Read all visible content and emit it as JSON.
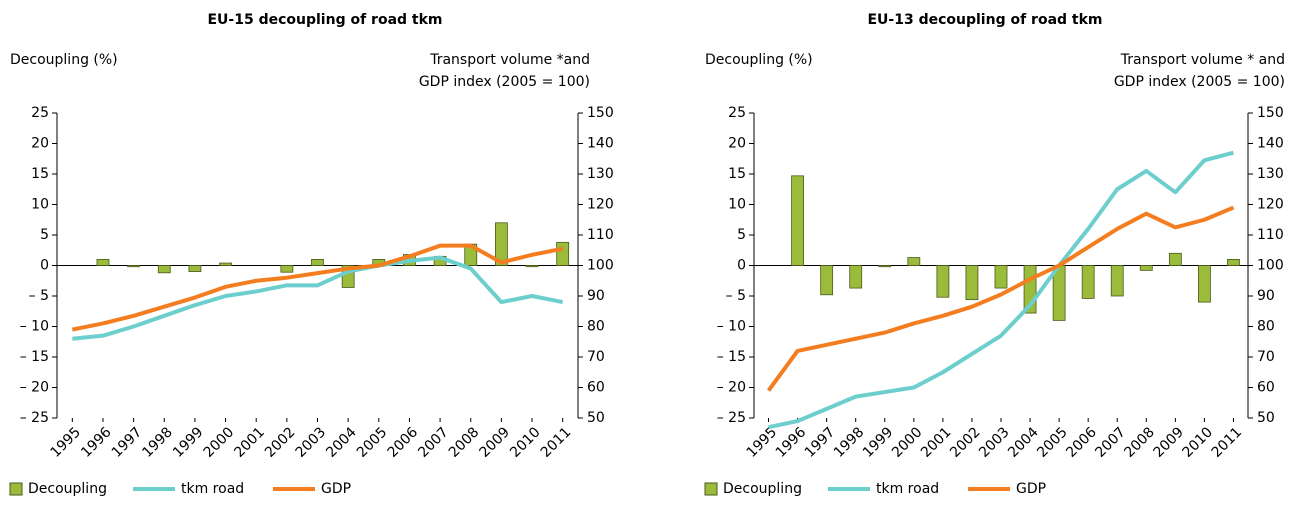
{
  "chart_data": [
    {
      "type": "bar",
      "title": "EU-15 decoupling of road tkm",
      "y_label": "Decoupling (%)",
      "y2_label": [
        "Transport volume  *and",
        "GDP index (2005 = 100)"
      ],
      "categories": [
        "1995",
        "1996",
        "1997",
        "1998",
        "1999",
        "2000",
        "2001",
        "2002",
        "2003",
        "2004",
        "2005",
        "2006",
        "2007",
        "2008",
        "2009",
        "2010",
        "2011"
      ],
      "series": [
        {
          "name": "Decoupling",
          "type": "bar",
          "color": "#9bbb3b",
          "axis": "y",
          "values": [
            null,
            1.0,
            -0.2,
            -1.2,
            -1.0,
            0.4,
            0,
            -1.1,
            1.0,
            -3.6,
            1.0,
            1.8,
            1.5,
            3.5,
            7.0,
            -0.2,
            3.8
          ]
        },
        {
          "name": "tkm road",
          "type": "line",
          "color": "#6ccfcd",
          "axis": "y2",
          "values": [
            76,
            77,
            80,
            83.5,
            87,
            90,
            91.5,
            93.5,
            93.5,
            98,
            100,
            101.5,
            102.6,
            99,
            88,
            90,
            88
          ]
        },
        {
          "name": "GDP",
          "type": "line",
          "color": "#f47d20",
          "axis": "y2",
          "values": [
            79,
            81,
            83.5,
            86.5,
            89.5,
            93,
            95,
            96,
            97.5,
            99,
            100,
            103,
            106.5,
            106.5,
            101,
            103.5,
            105.5
          ]
        }
      ],
      "ylim": [
        -25,
        25
      ],
      "yticks": [
        25,
        20,
        15,
        10,
        5,
        0,
        {
          "value": -5,
          "label": "– 5"
        },
        {
          "value": -10,
          "label": "– 10"
        },
        {
          "value": -15,
          "label": "– 15"
        },
        {
          "value": -20,
          "label": "– 20"
        },
        {
          "value": -25,
          "label": "– 25"
        }
      ],
      "y2lim": [
        50,
        150
      ],
      "y2ticks": [
        150,
        140,
        130,
        120,
        110,
        100,
        90,
        80,
        70,
        60,
        50
      ],
      "grid": false
    },
    {
      "type": "bar",
      "title": "EU-13 decoupling of road tkm",
      "y_label": "Decoupling (%)",
      "y2_label": [
        "Transport volume * and",
        "GDP index (2005 = 100)"
      ],
      "categories": [
        "1995",
        "1996",
        "1997",
        "1998",
        "1999",
        "2000",
        "2001",
        "2002",
        "2003",
        "2004",
        "2005",
        "2006",
        "2007",
        "2008",
        "2009",
        "2010",
        "2011"
      ],
      "series": [
        {
          "name": "Decoupling",
          "type": "bar",
          "color": "#9bbb3b",
          "axis": "y",
          "values": [
            null,
            14.7,
            -4.8,
            -3.7,
            -0.2,
            1.3,
            -5.2,
            -5.6,
            -3.7,
            -7.8,
            -9,
            -5.4,
            -5,
            -0.8,
            2.0,
            -6,
            1.0
          ]
        },
        {
          "name": "tkm road",
          "type": "line",
          "color": "#6ccfcd",
          "axis": "y2",
          "values": [
            47,
            49,
            53,
            57,
            58.5,
            60,
            65,
            71,
            77,
            87,
            100,
            112,
            125,
            131,
            124,
            134.5,
            137
          ]
        },
        {
          "name": "GDP",
          "type": "line",
          "color": "#f47d20",
          "axis": "y2",
          "values": [
            59,
            72,
            74,
            76,
            78,
            81,
            83.5,
            86.5,
            90.5,
            95.5,
            100,
            106,
            112,
            117,
            112.5,
            115,
            119
          ]
        }
      ],
      "ylim": [
        -25,
        25
      ],
      "yticks": [
        25,
        20,
        15,
        10,
        5,
        0,
        {
          "value": -5,
          "label": "– 5"
        },
        {
          "value": -10,
          "label": "– 10"
        },
        {
          "value": -15,
          "label": "– 15"
        },
        {
          "value": -20,
          "label": "– 20"
        },
        {
          "value": -25,
          "label": "– 25"
        }
      ],
      "y2lim": [
        50,
        150
      ],
      "y2ticks": [
        150,
        140,
        130,
        120,
        110,
        100,
        90,
        80,
        70,
        60,
        50
      ],
      "grid": false
    }
  ]
}
